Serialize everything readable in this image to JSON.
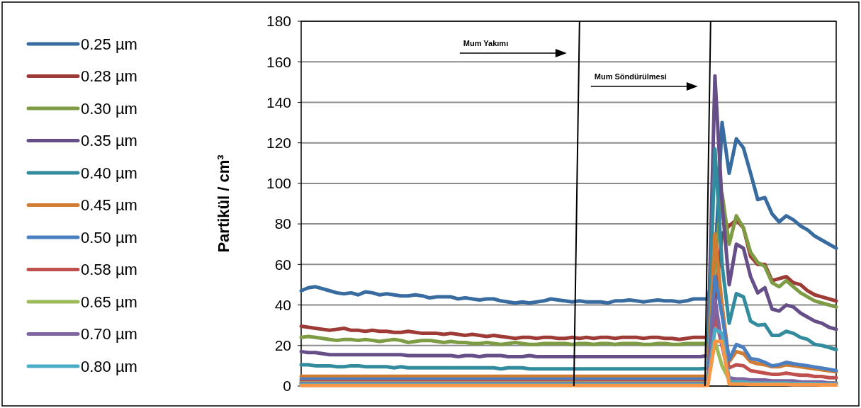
{
  "chart_data": {
    "type": "line",
    "ylabel": "Partikül / cm³",
    "ylim": [
      0,
      180
    ],
    "yticks": [
      0,
      20,
      40,
      60,
      80,
      100,
      120,
      140,
      160,
      180
    ],
    "grid": "y",
    "legend": "left",
    "tick_labels": "y",
    "marker": "none",
    "line_style": "solid",
    "categories": [
      null,
      null,
      null,
      null,
      null,
      null,
      null,
      null,
      null,
      null,
      null,
      null,
      null,
      null,
      null,
      null,
      null,
      null,
      null,
      null,
      null,
      null,
      null,
      null,
      null,
      null,
      null,
      null,
      null,
      null,
      null,
      null,
      null,
      null,
      null,
      null,
      null,
      null,
      null,
      null,
      null,
      null,
      null,
      null,
      null,
      null,
      null,
      null,
      null,
      null,
      null,
      null,
      null,
      null,
      null,
      null,
      null,
      null,
      null,
      null,
      null,
      null,
      null,
      null,
      null,
      null,
      null,
      null,
      null,
      null,
      null,
      null,
      null,
      null,
      null,
      null
    ],
    "annotations": [
      "Mum Yakımı",
      "Mum Söndürülmesi"
    ],
    "series": [
      {
        "name": "0.25 µm",
        "color": "#386ba0",
        "values": [
          47,
          48.5,
          49,
          48,
          47,
          46,
          45.5,
          46,
          45,
          46.5,
          46,
          45,
          45.5,
          45,
          44.5,
          44.5,
          45,
          44.5,
          43.5,
          44,
          44,
          44,
          43,
          43.5,
          43,
          42.5,
          43,
          43,
          42,
          41.5,
          41,
          41.5,
          41,
          41.5,
          42,
          43,
          42.5,
          42,
          41.5,
          42,
          41.5,
          41.5,
          41.5,
          41,
          42,
          42,
          42.5,
          42,
          41.5,
          42,
          42.5,
          42,
          42,
          41.5,
          42,
          43,
          43,
          43,
          60,
          130,
          105,
          122,
          117.5,
          105,
          92,
          93,
          85,
          81,
          84,
          82,
          79,
          77,
          74,
          72,
          70,
          68
        ]
      },
      {
        "name": "0.28 µm",
        "color": "#9e3b37",
        "values": [
          29.5,
          29,
          28.5,
          28,
          27.5,
          28,
          28.5,
          27.5,
          27.5,
          27,
          27.5,
          27,
          27,
          26.5,
          26.5,
          27,
          26.5,
          26,
          26,
          26,
          25.5,
          26,
          25.5,
          25,
          25.5,
          25,
          24.5,
          25,
          24.5,
          24,
          23.5,
          24,
          24,
          23.5,
          24,
          24,
          23.5,
          23.5,
          24,
          23.5,
          24,
          23.5,
          24,
          24,
          23.5,
          24,
          24,
          24,
          23.5,
          24,
          24,
          23.5,
          23.5,
          23,
          23.5,
          24,
          24,
          24,
          40,
          75,
          79,
          82,
          78,
          64,
          60,
          60,
          52,
          53,
          54,
          51,
          50,
          47,
          45,
          44,
          43,
          42
        ]
      },
      {
        "name": "0.30 µm",
        "color": "#7d9c44",
        "values": [
          24,
          24.5,
          24,
          23.5,
          23,
          22.5,
          23,
          23,
          22.5,
          23,
          22.5,
          22,
          22.5,
          23,
          22.5,
          21.5,
          22,
          22.5,
          22.5,
          22,
          21.5,
          22,
          21.5,
          21.5,
          21,
          21,
          21.5,
          21,
          20.5,
          21,
          21.5,
          21,
          20.5,
          20.5,
          21,
          21,
          21,
          21,
          20.5,
          21,
          21,
          20.5,
          21,
          21,
          20.5,
          21,
          21,
          21,
          20.5,
          20.5,
          21,
          21,
          20.5,
          20.5,
          21,
          21,
          21,
          21,
          60,
          95,
          70,
          84,
          78,
          66,
          61,
          59,
          51,
          49,
          52,
          49,
          46,
          44,
          42,
          41,
          40,
          39
        ]
      },
      {
        "name": "0.35 µm",
        "color": "#664f88",
        "values": [
          17,
          16.5,
          16.5,
          16,
          15.5,
          15.5,
          15.5,
          15.5,
          15.5,
          15.5,
          15.5,
          15.5,
          15.5,
          15.5,
          15.5,
          15,
          15,
          15,
          15,
          15,
          15,
          15,
          14.5,
          15,
          15,
          14.5,
          15,
          15,
          15,
          14.5,
          14.5,
          14.5,
          15,
          14.5,
          14.5,
          14.5,
          14.5,
          14.5,
          14.5,
          14.5,
          14.5,
          14.5,
          14.5,
          14.5,
          14.5,
          14.5,
          14.5,
          14.5,
          14.5,
          14.5,
          14.5,
          14.5,
          14.5,
          14.5,
          14.5,
          14.5,
          14.5,
          15,
          153,
          90,
          50,
          70,
          68,
          54,
          46,
          48.5,
          38,
          37,
          40,
          39,
          36,
          34,
          32,
          31,
          29,
          28
        ]
      },
      {
        "name": "0.40 µm",
        "color": "#338c9e",
        "values": [
          10.5,
          10.5,
          10,
          10,
          10,
          9.5,
          9.5,
          10,
          10,
          9.5,
          9.5,
          9.5,
          9.5,
          9,
          9.5,
          9,
          9,
          9,
          9,
          9,
          9,
          9,
          9,
          9,
          9,
          9,
          9,
          9,
          8.5,
          9,
          9,
          9,
          8.5,
          8.5,
          8.5,
          8.5,
          8.5,
          8.5,
          8.5,
          8.5,
          8.5,
          8.5,
          8.5,
          8.5,
          8.5,
          8.5,
          8.5,
          8.5,
          8.5,
          8.5,
          8.5,
          8.5,
          8.5,
          8.5,
          8.5,
          8.5,
          8.5,
          9,
          117,
          60,
          31,
          45.6,
          44,
          32,
          30,
          30.4,
          25,
          25,
          27,
          26,
          24,
          23,
          20.5,
          20,
          19,
          18
        ]
      },
      {
        "name": "0.45 µm",
        "color": "#d07c32",
        "values": [
          4.8,
          4.8,
          4.8,
          4.8,
          4.8,
          4.8,
          4.8,
          4.8,
          4.8,
          4.8,
          4.8,
          4.8,
          4.8,
          4.8,
          4.8,
          4.8,
          4.8,
          4.8,
          4.8,
          4.8,
          4.8,
          4.8,
          4.8,
          4.8,
          4.8,
          4.8,
          4.8,
          4.8,
          4.8,
          4.8,
          4.8,
          4.8,
          4.8,
          4.8,
          4.8,
          4.8,
          4.8,
          4.8,
          4.8,
          4.8,
          4.8,
          4.8,
          4.8,
          4.8,
          4.8,
          4.8,
          4.8,
          4.8,
          4.8,
          4.8,
          4.8,
          4.8,
          4.8,
          4.8,
          4.8,
          4.8,
          4.8,
          4.8,
          75,
          40,
          12,
          17,
          16,
          12,
          11,
          10.5,
          9.5,
          9.5,
          10.5,
          10,
          9.5,
          9,
          8.5,
          8,
          7.5,
          7
        ]
      },
      {
        "name": "0.50 µm",
        "color": "#4a7fc1",
        "values": [
          3.4,
          3.4,
          3.4,
          3.4,
          3.4,
          3.4,
          3.4,
          3.4,
          3.4,
          3.4,
          3.4,
          3.4,
          3.4,
          3.4,
          3.4,
          3.4,
          3.4,
          3.4,
          3.4,
          3.4,
          3.4,
          3.4,
          3.4,
          3.4,
          3.4,
          3.4,
          3.4,
          3.4,
          3.4,
          3.4,
          3.4,
          3.4,
          3.4,
          3.4,
          3.4,
          3.4,
          3.4,
          3.4,
          3.4,
          3.4,
          3.4,
          3.4,
          3.4,
          3.4,
          3.4,
          3.4,
          3.4,
          3.4,
          3.4,
          3.4,
          3.4,
          3.4,
          3.4,
          3.4,
          3.4,
          3.4,
          3.4,
          3.4,
          54,
          35,
          13,
          20.5,
          19,
          13.5,
          13,
          11.7,
          10,
          10.5,
          11.7,
          11,
          10.5,
          10,
          9.4,
          8.8,
          8.2,
          7.6
        ]
      },
      {
        "name": "0.58 µm",
        "color": "#c0504d",
        "values": [
          2.2,
          2.2,
          2.2,
          2.2,
          2.2,
          2.2,
          2.2,
          2.2,
          2.2,
          2.2,
          2.2,
          2.2,
          2.2,
          2.2,
          2.2,
          2.2,
          2.2,
          2.2,
          2.2,
          2.2,
          2.2,
          2.2,
          2.2,
          2.2,
          2.2,
          2.2,
          2.2,
          2.2,
          2.2,
          2.2,
          2.2,
          2.2,
          2.2,
          2.2,
          2.2,
          2.2,
          2.2,
          2.2,
          2.2,
          2.2,
          2.2,
          2.2,
          2.2,
          2.2,
          2.2,
          2.2,
          2.2,
          2.2,
          2.2,
          2.2,
          2.2,
          2.2,
          2.2,
          2.2,
          2.2,
          2.2,
          2.2,
          2.2,
          35,
          20,
          9,
          10.5,
          10,
          7.6,
          7,
          6.4,
          5.8,
          5.8,
          6.4,
          5.8,
          5.3,
          5.3,
          4.7,
          4.7,
          4.1,
          4.1
        ]
      },
      {
        "name": "0.65 µm",
        "color": "#9bbb59",
        "values": [
          1.5,
          1.5,
          1.5,
          1.5,
          1.5,
          1.5,
          1.5,
          1.5,
          1.5,
          1.5,
          1.5,
          1.5,
          1.5,
          1.5,
          1.5,
          1.5,
          1.5,
          1.5,
          1.5,
          1.5,
          1.5,
          1.5,
          1.5,
          1.5,
          1.5,
          1.5,
          1.5,
          1.5,
          1.5,
          1.5,
          1.5,
          1.5,
          1.5,
          1.5,
          1.5,
          1.5,
          1.5,
          1.5,
          1.5,
          1.5,
          1.5,
          1.5,
          1.5,
          1.5,
          1.5,
          1.5,
          1.5,
          1.5,
          1.5,
          1.5,
          1.5,
          1.5,
          1.5,
          1.5,
          1.5,
          1.5,
          1.5,
          1.5,
          22,
          10,
          3,
          3,
          3,
          2.5,
          2.5,
          2.5,
          2,
          2,
          2,
          2,
          2,
          1.5,
          1.5,
          1.5,
          1.5,
          1.5
        ]
      },
      {
        "name": "0.70 µm",
        "color": "#8064a2",
        "values": [
          1.2,
          1.2,
          1.2,
          1.2,
          1.2,
          1.2,
          1.2,
          1.2,
          1.2,
          1.2,
          1.2,
          1.2,
          1.2,
          1.2,
          1.2,
          1.2,
          1.2,
          1.2,
          1.2,
          1.2,
          1.2,
          1.2,
          1.2,
          1.2,
          1.2,
          1.2,
          1.2,
          1.2,
          1.2,
          1.2,
          1.2,
          1.2,
          1.2,
          1.2,
          1.2,
          1.2,
          1.2,
          1.2,
          1.2,
          1.2,
          1.2,
          1.2,
          1.2,
          1.2,
          1.2,
          1.2,
          1.2,
          1.2,
          1.2,
          1.2,
          1.2,
          1.2,
          1.2,
          1.2,
          1.2,
          1.2,
          1.2,
          1.2,
          43,
          20,
          4,
          3.5,
          3.5,
          3,
          3,
          3,
          2.5,
          2.5,
          2.5,
          2.5,
          2,
          2,
          2,
          2,
          1.5,
          1.5
        ]
      },
      {
        "name": "0.80 µm",
        "color": "#4bacc6",
        "values": [
          0.8,
          0.8,
          0.8,
          0.8,
          0.8,
          0.8,
          0.8,
          0.8,
          0.8,
          0.8,
          0.8,
          0.8,
          0.8,
          0.8,
          0.8,
          0.8,
          0.8,
          0.8,
          0.8,
          0.8,
          0.8,
          0.8,
          0.8,
          0.8,
          0.8,
          0.8,
          0.8,
          0.8,
          0.8,
          0.8,
          0.8,
          0.8,
          0.8,
          0.8,
          0.8,
          0.8,
          0.8,
          0.8,
          0.8,
          0.8,
          0.8,
          0.8,
          0.8,
          0.8,
          0.8,
          0.8,
          0.8,
          0.8,
          0.8,
          0.8,
          0.8,
          0.8,
          0.8,
          0.8,
          0.8,
          0.8,
          0.8,
          0.8,
          28,
          26,
          2,
          2,
          2,
          1.5,
          1.5,
          1.5,
          1.5,
          1.5,
          1.5,
          1.2,
          1.2,
          1.2,
          1.2,
          1,
          1,
          1
        ]
      },
      {
        "color": "#f79646",
        "values": [
          0.3,
          0.3,
          0.3,
          0.3,
          0.3,
          0.3,
          0.3,
          0.3,
          0.3,
          0.3,
          0.3,
          0.3,
          0.3,
          0.3,
          0.3,
          0.3,
          0.3,
          0.3,
          0.3,
          0.3,
          0.3,
          0.3,
          0.3,
          0.3,
          0.3,
          0.3,
          0.3,
          0.3,
          0.3,
          0.3,
          0.3,
          0.3,
          0.3,
          0.3,
          0.3,
          0.3,
          0.3,
          0.3,
          0.3,
          0.3,
          0.3,
          0.3,
          0.3,
          0.3,
          0.3,
          0.3,
          0.3,
          0.3,
          0.3,
          0.3,
          0.3,
          0.3,
          0.3,
          0.3,
          0.3,
          0.3,
          0.3,
          0.3,
          22,
          22,
          1,
          1,
          1,
          0.8,
          0.8,
          0.8,
          0.8,
          0.8,
          0.8,
          0.6,
          0.6,
          0.6,
          0.6,
          0.5,
          0.5,
          0.5
        ]
      }
    ]
  }
}
